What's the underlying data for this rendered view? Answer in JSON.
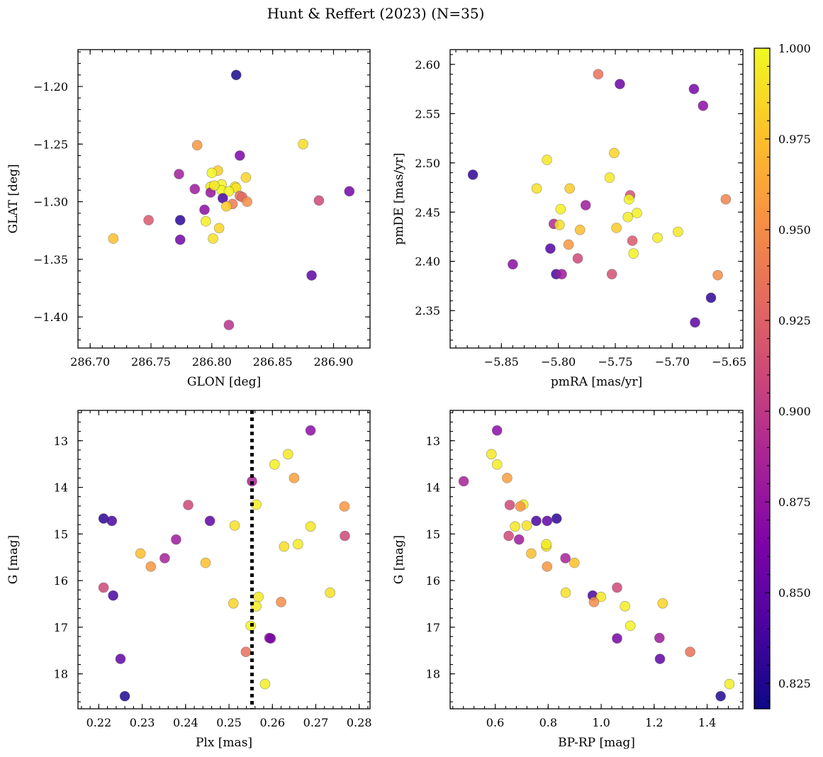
{
  "chart_data": {
    "type": "scatter",
    "title": "Hunt & Reffert (2023) (N=35)",
    "colorbar": {
      "range": [
        0.818,
        1.0
      ],
      "ticks": [
        "0.825",
        "0.850",
        "0.875",
        "0.900",
        "0.925",
        "0.950",
        "0.975",
        "1.000"
      ],
      "tick_values": [
        0.825,
        0.85,
        0.875,
        0.9,
        0.925,
        0.95,
        0.975,
        1.0
      ],
      "colormap": "plasma"
    },
    "panels": [
      {
        "id": "glon-glat",
        "xlabel": "GLON [deg]",
        "ylabel": "GLAT [deg]",
        "xlim": [
          286.69,
          286.93
        ],
        "ylim": [
          -1.427,
          -1.168
        ],
        "yinvert": false,
        "xticks": [
          286.7,
          286.75,
          286.8,
          286.85,
          286.9
        ],
        "xticklabels": [
          "286.70",
          "286.75",
          "286.80",
          "286.85",
          "286.90"
        ],
        "yticks": [
          -1.2,
          -1.25,
          -1.3,
          -1.35,
          -1.4
        ],
        "yticklabels": [
          "−1.20",
          "−1.25",
          "−1.30",
          "−1.35",
          "−1.40"
        ],
        "points": [
          [
            286.82,
            -1.19,
            0.822
          ],
          [
            286.823,
            -1.26,
            0.864
          ],
          [
            286.875,
            -1.25,
            0.988
          ],
          [
            286.788,
            -1.251,
            0.955
          ],
          [
            286.773,
            -1.276,
            0.882
          ],
          [
            286.805,
            -1.273,
            0.982
          ],
          [
            286.8,
            -1.275,
            0.998
          ],
          [
            286.828,
            -1.279,
            0.985
          ],
          [
            286.786,
            -1.289,
            0.88
          ],
          [
            286.799,
            -1.287,
            0.992
          ],
          [
            286.799,
            -1.292,
            0.875
          ],
          [
            286.808,
            -1.285,
            0.997
          ],
          [
            286.819,
            -1.287,
            0.993
          ],
          [
            286.82,
            -1.288,
            0.99
          ],
          [
            286.808,
            -1.29,
            0.999
          ],
          [
            286.814,
            -1.291,
            0.997
          ],
          [
            286.809,
            -1.297,
            0.84
          ],
          [
            286.823,
            -1.295,
            0.935
          ],
          [
            286.825,
            -1.296,
            0.93
          ],
          [
            286.817,
            -1.302,
            0.94
          ],
          [
            286.812,
            -1.304,
            0.98
          ],
          [
            286.829,
            -1.3,
            0.95
          ],
          [
            286.913,
            -1.291,
            0.86
          ],
          [
            286.888,
            -1.299,
            0.91
          ],
          [
            286.748,
            -1.316,
            0.92
          ],
          [
            286.794,
            -1.307,
            0.87
          ],
          [
            286.795,
            -1.317,
            0.995
          ],
          [
            286.774,
            -1.316,
            0.83
          ],
          [
            286.806,
            -1.323,
            0.985
          ],
          [
            286.719,
            -1.332,
            0.975
          ],
          [
            286.774,
            -1.333,
            0.858
          ],
          [
            286.801,
            -1.332,
            0.99
          ],
          [
            286.882,
            -1.364,
            0.85
          ],
          [
            286.814,
            -1.407,
            0.895
          ],
          [
            286.802,
            -1.286,
            0.993
          ]
        ]
      },
      {
        "id": "pmra-pmde",
        "xlabel": "pmRA [mas/yr]",
        "ylabel": "pmDE [mas/yr]",
        "xlim": [
          -5.895,
          -5.638
        ],
        "ylim": [
          2.312,
          2.615
        ],
        "yinvert": false,
        "xticks": [
          -5.85,
          -5.8,
          -5.75,
          -5.7,
          -5.65
        ],
        "xticklabels": [
          "−5.85",
          "−5.80",
          "−5.75",
          "−5.70",
          "−5.65"
        ],
        "yticks": [
          2.35,
          2.4,
          2.45,
          2.5,
          2.55,
          2.6
        ],
        "yticklabels": [
          "2.35",
          "2.40",
          "2.45",
          "2.50",
          "2.55",
          "2.60"
        ],
        "points": [
          [
            -5.765,
            2.59,
            0.935
          ],
          [
            -5.746,
            2.58,
            0.855
          ],
          [
            -5.681,
            2.575,
            0.86
          ],
          [
            -5.673,
            2.558,
            0.87
          ],
          [
            -5.751,
            2.51,
            0.985
          ],
          [
            -5.81,
            2.503,
            0.992
          ],
          [
            -5.875,
            2.488,
            0.83
          ],
          [
            -5.755,
            2.485,
            0.993
          ],
          [
            -5.819,
            2.474,
            0.99
          ],
          [
            -5.79,
            2.474,
            0.98
          ],
          [
            -5.737,
            2.467,
            0.915
          ],
          [
            -5.738,
            2.463,
            0.998
          ],
          [
            -5.653,
            2.463,
            0.945
          ],
          [
            -5.776,
            2.457,
            0.88
          ],
          [
            -5.798,
            2.453,
            0.996
          ],
          [
            -5.731,
            2.449,
            0.996
          ],
          [
            -5.739,
            2.445,
            0.994
          ],
          [
            -5.804,
            2.438,
            0.89
          ],
          [
            -5.799,
            2.437,
            0.99
          ],
          [
            -5.749,
            2.434,
            0.98
          ],
          [
            -5.781,
            2.432,
            0.975
          ],
          [
            -5.695,
            2.43,
            0.992
          ],
          [
            -5.713,
            2.424,
            0.995
          ],
          [
            -5.735,
            2.421,
            0.92
          ],
          [
            -5.791,
            2.417,
            0.955
          ],
          [
            -5.807,
            2.413,
            0.845
          ],
          [
            -5.734,
            2.408,
            0.997
          ],
          [
            -5.783,
            2.403,
            0.91
          ],
          [
            -5.84,
            2.397,
            0.87
          ],
          [
            -5.802,
            2.387,
            0.84
          ],
          [
            -5.797,
            2.387,
            0.88
          ],
          [
            -5.753,
            2.387,
            0.915
          ],
          [
            -5.66,
            2.386,
            0.95
          ],
          [
            -5.666,
            2.363,
            0.83
          ],
          [
            -5.68,
            2.338,
            0.85
          ]
        ]
      },
      {
        "id": "plx-g",
        "xlabel": "Plx [mas]",
        "ylabel": "G [mag]",
        "xlim": [
          0.2152,
          0.2825
        ],
        "ylim": [
          12.35,
          18.75
        ],
        "yinvert": true,
        "xticks": [
          0.22,
          0.23,
          0.24,
          0.25,
          0.26,
          0.27,
          0.28
        ],
        "xticklabels": [
          "0.22",
          "0.23",
          "0.24",
          "0.25",
          "0.26",
          "0.27",
          "0.28"
        ],
        "yticks": [
          13,
          14,
          15,
          16,
          17,
          18
        ],
        "yticklabels": [
          "13",
          "14",
          "15",
          "16",
          "17",
          "18"
        ],
        "vline": 0.2553,
        "points": [
          [
            0.2688,
            12.78,
            0.87
          ],
          [
            0.2636,
            13.29,
            0.993
          ],
          [
            0.2605,
            13.51,
            0.995
          ],
          [
            0.265,
            13.8,
            0.96
          ],
          [
            0.2553,
            13.87,
            0.885
          ],
          [
            0.2211,
            14.67,
            0.83
          ],
          [
            0.223,
            14.72,
            0.84
          ],
          [
            0.2406,
            14.38,
            0.91
          ],
          [
            0.2563,
            14.37,
            0.995
          ],
          [
            0.2766,
            14.41,
            0.955
          ],
          [
            0.2456,
            14.72,
            0.85
          ],
          [
            0.2513,
            14.82,
            0.99
          ],
          [
            0.2688,
            14.84,
            0.992
          ],
          [
            0.2767,
            15.04,
            0.91
          ],
          [
            0.2378,
            15.12,
            0.88
          ],
          [
            0.2627,
            15.27,
            0.988
          ],
          [
            0.2659,
            15.22,
            0.994
          ],
          [
            0.2296,
            15.42,
            0.975
          ],
          [
            0.2352,
            15.52,
            0.885
          ],
          [
            0.2446,
            15.62,
            0.975
          ],
          [
            0.232,
            15.7,
            0.955
          ],
          [
            0.2211,
            16.15,
            0.91
          ],
          [
            0.2233,
            16.32,
            0.84
          ],
          [
            0.2733,
            16.26,
            0.99
          ],
          [
            0.2568,
            16.35,
            0.993
          ],
          [
            0.251,
            16.49,
            0.985
          ],
          [
            0.262,
            16.46,
            0.95
          ],
          [
            0.2563,
            16.55,
            0.995
          ],
          [
            0.255,
            16.97,
            0.998
          ],
          [
            0.2593,
            17.23,
            0.88
          ],
          [
            0.2596,
            17.24,
            0.86
          ],
          [
            0.2539,
            17.53,
            0.935
          ],
          [
            0.225,
            17.68,
            0.85
          ],
          [
            0.2583,
            18.22,
            0.995
          ],
          [
            0.226,
            18.48,
            0.825
          ]
        ]
      },
      {
        "id": "bprp-g",
        "xlabel": "BP-RP [mag]",
        "ylabel": "G [mag]",
        "xlim": [
          0.43,
          1.535
        ],
        "ylim": [
          12.35,
          18.75
        ],
        "yinvert": true,
        "xticks": [
          0.6,
          0.8,
          1.0,
          1.2,
          1.4
        ],
        "xticklabels": [
          "0.6",
          "0.8",
          "1.0",
          "1.2",
          "1.4"
        ],
        "yticks": [
          13,
          14,
          15,
          16,
          17,
          18
        ],
        "yticklabels": [
          "13",
          "14",
          "15",
          "16",
          "17",
          "18"
        ],
        "points": [
          [
            0.607,
            12.78,
            0.87
          ],
          [
            0.586,
            13.29,
            0.993
          ],
          [
            0.607,
            13.51,
            0.995
          ],
          [
            0.645,
            13.8,
            0.96
          ],
          [
            0.481,
            13.87,
            0.885
          ],
          [
            0.832,
            14.67,
            0.83
          ],
          [
            0.755,
            14.72,
            0.84
          ],
          [
            0.655,
            14.38,
            0.91
          ],
          [
            0.706,
            14.37,
            0.995
          ],
          [
            0.695,
            14.41,
            0.955
          ],
          [
            0.796,
            14.72,
            0.85
          ],
          [
            0.719,
            14.82,
            0.99
          ],
          [
            0.675,
            14.84,
            0.992
          ],
          [
            0.651,
            15.04,
            0.91
          ],
          [
            0.69,
            15.12,
            0.88
          ],
          [
            0.793,
            15.27,
            0.988
          ],
          [
            0.793,
            15.22,
            0.994
          ],
          [
            0.736,
            15.42,
            0.975
          ],
          [
            0.865,
            15.52,
            0.885
          ],
          [
            0.899,
            15.62,
            0.975
          ],
          [
            0.796,
            15.7,
            0.955
          ],
          [
            1.06,
            16.15,
            0.91
          ],
          [
            0.968,
            16.32,
            0.84
          ],
          [
            0.866,
            16.26,
            0.99
          ],
          [
            0.999,
            16.35,
            0.993
          ],
          [
            1.232,
            16.49,
            0.985
          ],
          [
            0.973,
            16.46,
            0.95
          ],
          [
            1.09,
            16.55,
            0.995
          ],
          [
            1.11,
            16.97,
            0.998
          ],
          [
            1.22,
            17.23,
            0.88
          ],
          [
            1.06,
            17.24,
            0.86
          ],
          [
            1.336,
            17.53,
            0.935
          ],
          [
            1.222,
            17.68,
            0.85
          ],
          [
            1.484,
            18.22,
            0.995
          ],
          [
            1.451,
            18.48,
            0.825
          ]
        ]
      }
    ]
  }
}
